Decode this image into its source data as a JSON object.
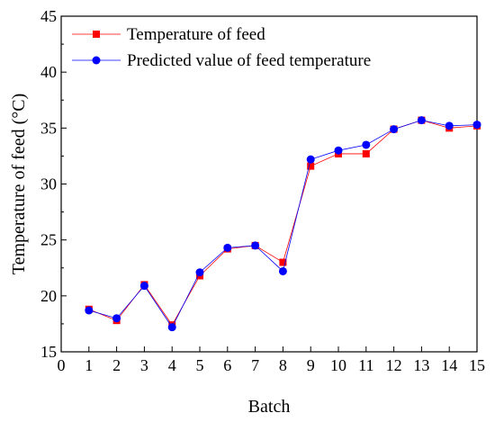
{
  "chart_data": {
    "type": "line",
    "title": "",
    "xlabel": "Batch",
    "ylabel": "Temperature of feed (°C)",
    "xlim": [
      0,
      15
    ],
    "ylim": [
      15,
      45
    ],
    "xticks": [
      0,
      1,
      2,
      3,
      4,
      5,
      6,
      7,
      8,
      9,
      10,
      11,
      12,
      13,
      14,
      15
    ],
    "yticks": [
      15,
      20,
      25,
      30,
      35,
      40,
      45
    ],
    "grid": false,
    "legend_position": "top-left",
    "x": [
      1,
      2,
      3,
      4,
      5,
      6,
      7,
      8,
      9,
      10,
      11,
      12,
      13,
      14,
      15
    ],
    "series": [
      {
        "name": "Temperature of feed",
        "marker": "square",
        "color": "#ff0000",
        "values": [
          18.8,
          17.8,
          21.0,
          17.4,
          21.8,
          24.2,
          24.5,
          23.0,
          31.6,
          32.7,
          32.7,
          34.9,
          35.7,
          35.0,
          35.2
        ]
      },
      {
        "name": "Predicted value of feed temperature",
        "marker": "circle",
        "color": "#0000ff",
        "values": [
          18.7,
          18.0,
          20.9,
          17.2,
          22.1,
          24.3,
          24.5,
          22.2,
          32.2,
          33.0,
          33.5,
          34.9,
          35.7,
          35.2,
          35.3
        ]
      }
    ]
  }
}
